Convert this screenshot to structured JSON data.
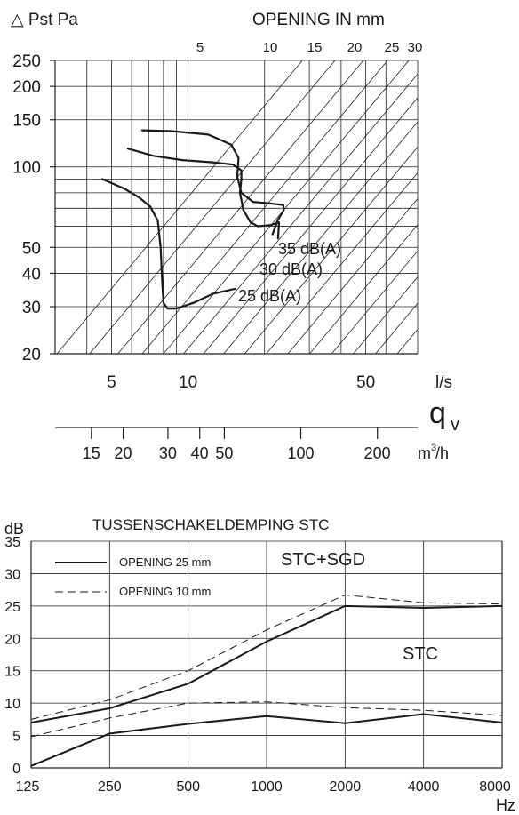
{
  "chart_data": [
    {
      "type": "line",
      "ylabel": "△ Pst  Pa",
      "top_axis_title": "OPENING IN mm",
      "opening_labels": [
        "5",
        "10",
        "15",
        "20",
        "25",
        "30"
      ],
      "y_ticks": [
        20,
        30,
        40,
        50,
        100,
        150,
        200,
        250
      ],
      "x_ticks": [
        5,
        10,
        50
      ],
      "x_unit": "l/s",
      "flow_symbol": "q",
      "flow_subscript": "v",
      "secondary_x_ticks": [
        15,
        20,
        30,
        40,
        50,
        100,
        200
      ],
      "secondary_x_unit": "m",
      "secondary_x_unit_sup": "3",
      "secondary_x_unit_suffix": "/h",
      "xlim": [
        3,
        80
      ],
      "ylim": [
        20,
        250
      ],
      "series": [
        {
          "name": "25 dB(A)",
          "x": [
            4.6,
            5.6,
            6.4,
            7.1,
            7.6,
            7.8,
            7.9,
            8.0,
            8.3,
            9.0,
            10.5,
            12.5,
            15.3
          ],
          "y": [
            90,
            83,
            77,
            71,
            63,
            50,
            38,
            31,
            29.5,
            29.5,
            31,
            33.5,
            35
          ]
        },
        {
          "name": "30 dB(A)",
          "x": [
            5.8,
            7.3,
            9.5,
            12.5,
            15.0,
            16.2,
            16.2,
            16.0,
            16.5,
            17.6,
            18.8,
            21.0,
            22.8,
            22.6
          ],
          "y": [
            117,
            110,
            106,
            104,
            102,
            97,
            90,
            80,
            69,
            62,
            60,
            60.5,
            62,
            54
          ]
        },
        {
          "name": "35 dB(A)",
          "x": [
            6.6,
            8.6,
            12.0,
            14.8,
            15.8,
            15.6,
            16.2,
            18.0,
            21.0,
            23.7,
            23.8,
            22.5,
            21.5
          ],
          "y": [
            137,
            136,
            132,
            121,
            108,
            92,
            80,
            74,
            73,
            72,
            69,
            63,
            56
          ]
        }
      ]
    },
    {
      "type": "line",
      "title": "TUSSENSCHAKELDEMPING STC",
      "ylabel": "dB",
      "xlabel": "Hz",
      "categories": [
        "125",
        "250",
        "500",
        "1000",
        "2000",
        "4000",
        "8000"
      ],
      "ylim": [
        0,
        35
      ],
      "y_ticks": [
        0,
        5,
        10,
        15,
        20,
        25,
        30,
        35
      ],
      "annotations": [
        "STC+SGD",
        "STC"
      ],
      "legend": [
        "OPENING 25 mm",
        "OPENING 10 mm"
      ],
      "legend_position": "top-left",
      "series": [
        {
          "name": "OPENING 25 mm",
          "group": "STC+SGD",
          "values": [
            7,
            9.2,
            13,
            19.5,
            25,
            24.7,
            25
          ]
        },
        {
          "name": "OPENING 10 mm",
          "group": "STC+SGD",
          "values": [
            7.5,
            10.5,
            15,
            21.3,
            26.7,
            25.5,
            25.3
          ]
        },
        {
          "name": "OPENING 25 mm",
          "group": "STC",
          "values": [
            0.3,
            5.3,
            6.8,
            8,
            6.9,
            8.3,
            7
          ]
        },
        {
          "name": "OPENING 10 mm",
          "group": "STC",
          "values": [
            4.8,
            7.7,
            10,
            10.2,
            9.3,
            8.9,
            8.1
          ]
        }
      ]
    }
  ]
}
